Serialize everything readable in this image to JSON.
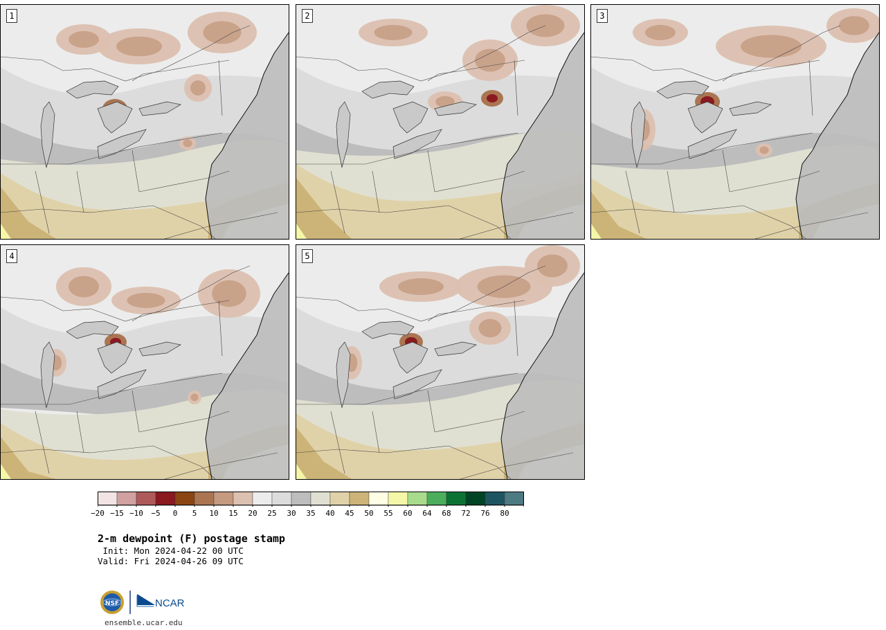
{
  "panels": [
    {
      "label": "1"
    },
    {
      "label": "2"
    },
    {
      "label": "3"
    },
    {
      "label": "4"
    },
    {
      "label": "5"
    }
  ],
  "colorbar": {
    "colors": [
      "#f2e4e4",
      "#d1a0a0",
      "#ae5a5a",
      "#8a1a20",
      "#8b4513",
      "#ab7552",
      "#c49a80",
      "#dcc0b0",
      "#ececec",
      "#dcdcdc",
      "#bdbdbd",
      "#e0e0d2",
      "#e0d2a8",
      "#ccb478",
      "#fffde4",
      "#f5f7a8",
      "#a8dc8c",
      "#4cae5c",
      "#0c7234",
      "#004426",
      "#1f5560",
      "#4e7a82"
    ],
    "ticks": [
      "−20",
      "−15",
      "−10",
      "−5",
      "0",
      "5",
      "10",
      "15",
      "20",
      "25",
      "30",
      "35",
      "40",
      "45",
      "50",
      "55",
      "60",
      "64",
      "68",
      "72",
      "76",
      "80"
    ]
  },
  "title": "2-m dewpoint (F) postage stamp",
  "init_line": " Init: Mon 2024-04-22 00 UTC",
  "valid_line": "Valid: Fri 2024-04-26 09 UTC",
  "logos": {
    "left": "NSF",
    "right": "NCAR"
  },
  "footer": "ensemble.ucar.edu"
}
